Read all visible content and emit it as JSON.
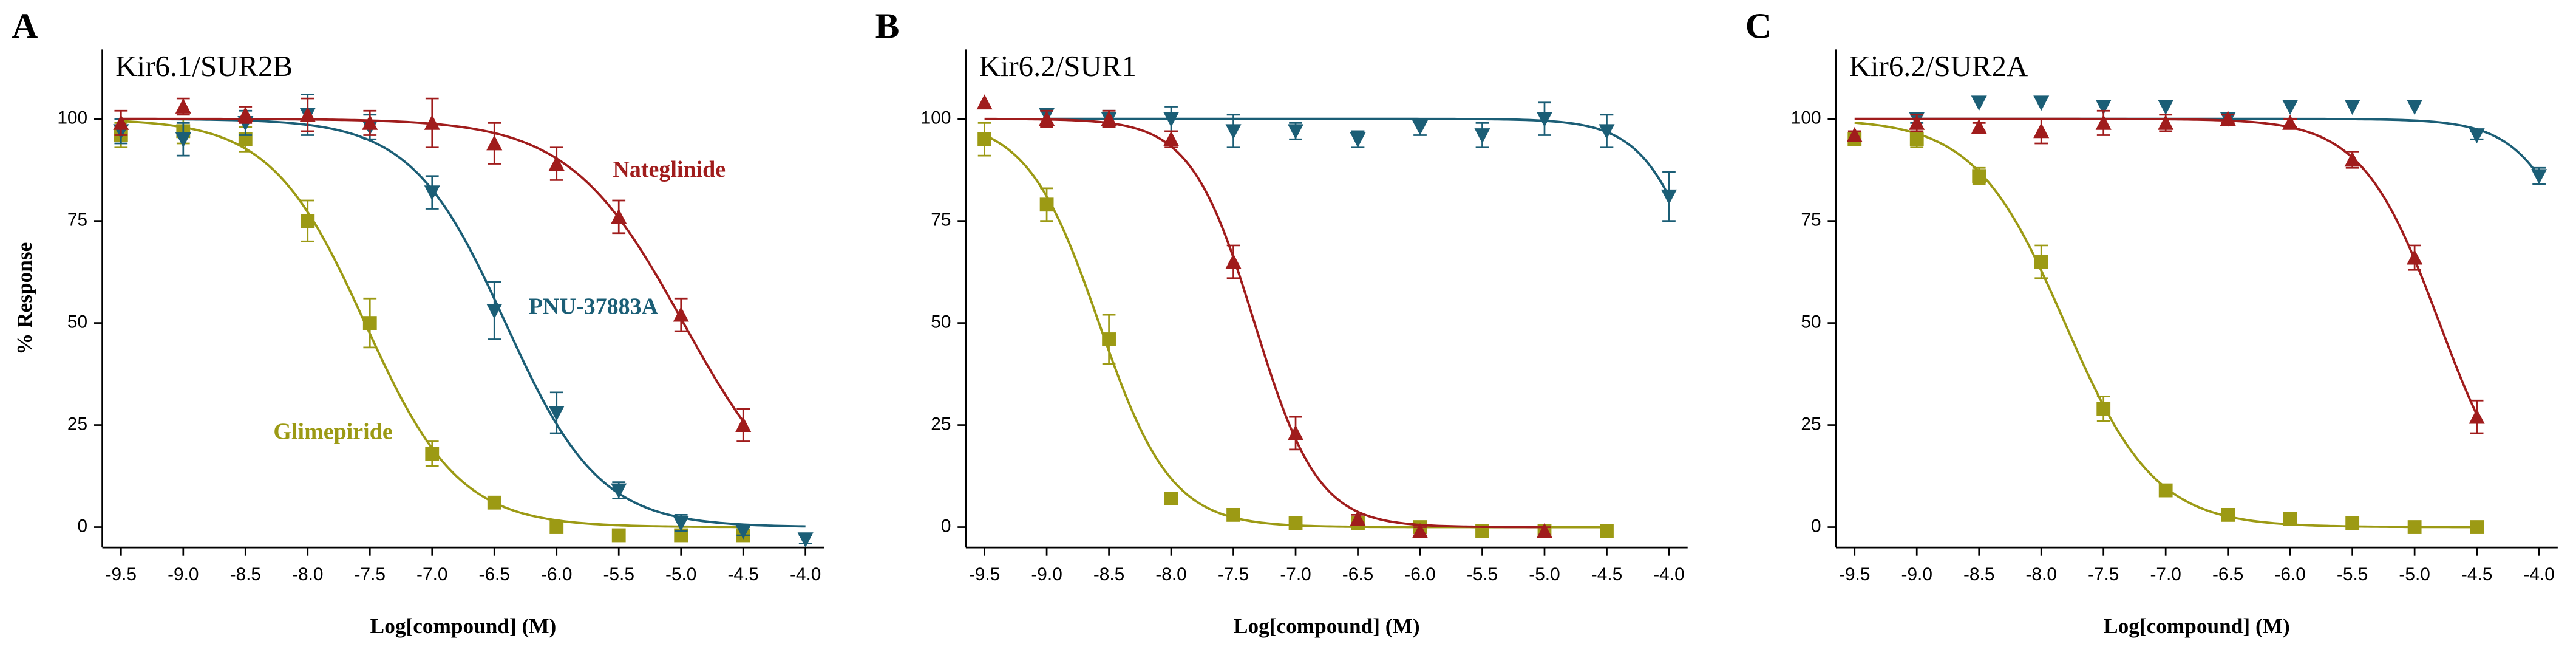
{
  "chart_data": [
    {
      "type": "scatter",
      "letter": "A",
      "title": "Kir6.1/SUR2B",
      "ylabel": "% Response",
      "xlabel": "Log[compound] (M)",
      "x": [
        -9.5,
        -9.0,
        -8.5,
        -8.0,
        -7.5,
        -7.0,
        -6.5,
        -6.0,
        -5.5,
        -5.0,
        -4.5,
        -4.0
      ],
      "xlim": [
        -9.65,
        -3.85
      ],
      "ylim": [
        -5,
        117
      ],
      "xticks": [
        -9.5,
        {
          "value": -9,
          "label": "-9.0"
        },
        -8.5,
        {
          "value": -8,
          "label": "-8.0"
        },
        -7.5,
        {
          "value": -7,
          "label": "-7.0"
        },
        -6.5,
        {
          "value": -6,
          "label": "-6.0"
        },
        -5.5,
        {
          "value": -5,
          "label": "-5.0"
        },
        -4.5,
        {
          "value": -4,
          "label": "-4.0"
        }
      ],
      "yticks": [
        0,
        25,
        50,
        75,
        100
      ],
      "series": [
        {
          "name": "Glimepiride",
          "color": "#9c9a14",
          "marker": "square",
          "values": [
            96,
            97,
            95,
            75,
            50,
            18,
            6,
            0,
            -2,
            -2,
            -2,
            null
          ],
          "errors": [
            3,
            3,
            3,
            5,
            6,
            3,
            1,
            1,
            1,
            1,
            1,
            null
          ]
        },
        {
          "name": "PNU-37883A",
          "color": "#1b5e76",
          "marker": "triangle-down",
          "values": [
            97,
            95,
            99,
            101,
            98,
            82,
            53,
            28,
            9,
            1,
            -1,
            -3
          ],
          "errors": [
            3,
            4,
            3,
            5,
            3,
            4,
            7,
            5,
            2,
            2,
            1,
            1
          ]
        },
        {
          "name": "Nateglinide",
          "color": "#a01c1c",
          "marker": "triangle-up",
          "values": [
            99,
            103,
            101,
            101,
            99,
            99,
            94,
            89,
            76,
            52,
            25,
            null
          ],
          "errors": [
            3,
            2,
            2,
            4,
            3,
            6,
            5,
            4,
            4,
            4,
            4,
            null
          ]
        }
      ]
    },
    {
      "type": "scatter",
      "letter": "B",
      "title": "Kir6.2/SUR1",
      "xlabel": "Log[compound] (M)",
      "x": [
        -9.5,
        -9.0,
        -8.5,
        -8.0,
        -7.5,
        -7.0,
        -6.5,
        -6.0,
        -5.5,
        -5.0,
        -4.5,
        -4.0
      ],
      "xlim": [
        -9.65,
        -3.85
      ],
      "ylim": [
        -5,
        117
      ],
      "xticks": [
        -9.5,
        {
          "value": -9,
          "label": "-9.0"
        },
        -8.5,
        {
          "value": -8,
          "label": "-8.0"
        },
        -7.5,
        {
          "value": -7,
          "label": "-7.0"
        },
        -6.5,
        {
          "value": -6,
          "label": "-6.0"
        },
        -5.5,
        {
          "value": -5,
          "label": "-5.0"
        },
        -4.5,
        {
          "value": -4,
          "label": "-4.0"
        }
      ],
      "yticks": [
        0,
        25,
        50,
        75,
        100
      ],
      "series": [
        {
          "color": "#9c9a14",
          "marker": "square",
          "values": [
            95,
            79,
            46,
            7,
            3,
            1,
            1,
            0,
            -1,
            -1,
            -1,
            null
          ],
          "errors": [
            4,
            4,
            6,
            1,
            1,
            1,
            1,
            1,
            1,
            1,
            1,
            null
          ]
        },
        {
          "color": "#1b5e76",
          "marker": "triangle-down",
          "values": [
            null,
            101,
            100,
            100,
            97,
            97,
            95,
            98,
            96,
            100,
            97,
            81
          ],
          "errors": [
            null,
            1,
            2,
            3,
            4,
            2,
            2,
            2,
            3,
            4,
            4,
            6
          ]
        },
        {
          "color": "#a01c1c",
          "marker": "triangle-up",
          "values": [
            104,
            100,
            100,
            95,
            65,
            23,
            2,
            -1,
            null,
            -1,
            null,
            null
          ],
          "errors": [
            0,
            2,
            2,
            2,
            4,
            4,
            1,
            1,
            null,
            1,
            null,
            null
          ]
        }
      ]
    },
    {
      "type": "scatter",
      "letter": "C",
      "title": "Kir6.2/SUR2A",
      "xlabel": "Log[compound] (M)",
      "x": [
        -9.5,
        -9.0,
        -8.5,
        -8.0,
        -7.5,
        -7.0,
        -6.5,
        -6.0,
        -5.5,
        -5.0,
        -4.5,
        -4.0
      ],
      "xlim": [
        -9.65,
        -3.85
      ],
      "ylim": [
        -5,
        117
      ],
      "xticks": [
        -9.5,
        {
          "value": -9,
          "label": "-9.0"
        },
        -8.5,
        {
          "value": -8,
          "label": "-8.0"
        },
        -7.5,
        {
          "value": -7,
          "label": "-7.0"
        },
        -6.5,
        {
          "value": -6,
          "label": "-6.0"
        },
        -5.5,
        {
          "value": -5,
          "label": "-5.0"
        },
        -4.5,
        {
          "value": -4,
          "label": "-4.0"
        }
      ],
      "yticks": [
        0,
        25,
        50,
        75,
        100
      ],
      "series": [
        {
          "color": "#9c9a14",
          "marker": "square",
          "values": [
            95,
            95,
            86,
            65,
            29,
            9,
            3,
            2,
            1,
            0,
            0,
            null
          ],
          "errors": [
            1,
            2,
            2,
            4,
            3,
            1,
            1,
            1,
            1,
            1,
            1,
            null
          ]
        },
        {
          "color": "#1b5e76",
          "marker": "triangle-down",
          "values": [
            null,
            100,
            104,
            104,
            103,
            103,
            100,
            103,
            103,
            103,
            96,
            86
          ],
          "errors": [
            null,
            1,
            0,
            0,
            0,
            0,
            0,
            0,
            0,
            0,
            1,
            2
          ]
        },
        {
          "color": "#a01c1c",
          "marker": "triangle-up",
          "values": [
            96,
            99,
            98,
            97,
            99,
            99,
            100,
            99,
            90,
            66,
            27,
            null
          ],
          "errors": [
            1,
            2,
            1,
            3,
            3,
            2,
            1,
            1,
            2,
            3,
            4,
            null
          ]
        }
      ]
    }
  ]
}
